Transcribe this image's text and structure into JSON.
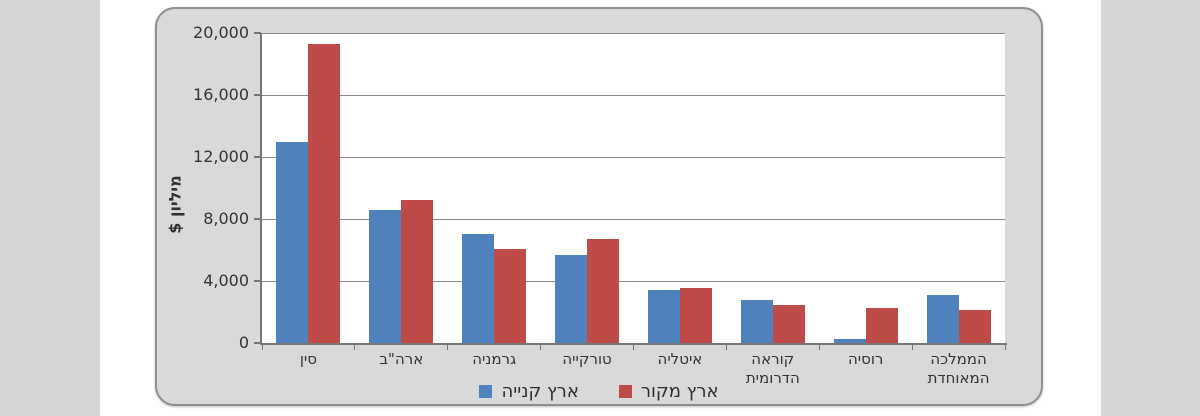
{
  "chart_data": {
    "type": "bar",
    "title": "",
    "categories": [
      "סין",
      "ארה\"ב",
      "גרמניה",
      "טורקייה",
      "איטליה",
      "קוראה הדרומית",
      "רוסיה",
      "הממלכה המאוחדת"
    ],
    "series": [
      {
        "name": "ארץ קנייה",
        "color": "#4f81bd",
        "values": [
          13000,
          8600,
          7050,
          5650,
          3400,
          2750,
          250,
          3100
        ]
      },
      {
        "name": "ארץ מקור",
        "color": "#bf4b48",
        "values": [
          19300,
          9250,
          6050,
          6700,
          3550,
          2450,
          2250,
          2150
        ]
      }
    ],
    "xlabel": "",
    "ylabel": "מיליון $",
    "ylim": [
      0,
      20000
    ],
    "yticks": [
      {
        "value": 0,
        "label": "0"
      },
      {
        "value": 4000,
        "label": "4,000"
      },
      {
        "value": 8000,
        "label": "8,000"
      },
      {
        "value": 12000,
        "label": "12,000"
      },
      {
        "value": 16000,
        "label": "16,000"
      },
      {
        "value": 20000,
        "label": "20,000"
      }
    ],
    "grid": true,
    "legend_position": "bottom",
    "rtl": true
  },
  "style_colors": {
    "bar_blue": "#4f81bd",
    "bar_red": "#bf4b48",
    "panel_fill": "#d9d9d9",
    "panel_border": "#8f8f8f",
    "gridline": "#8a8a8a",
    "axis": "#767676",
    "text": "#333333"
  }
}
